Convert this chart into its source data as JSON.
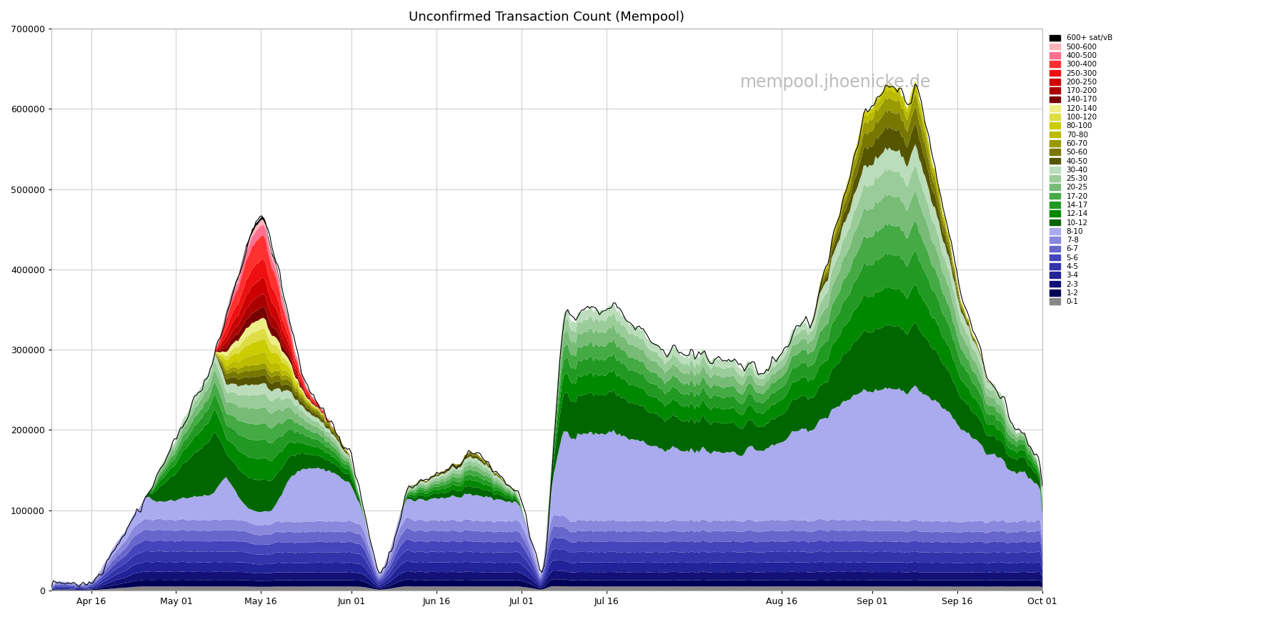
{
  "title": "Unconfirmed Transaction Count (Mempool)",
  "watermark": "mempool.jhoenicke.de",
  "background_color": "#ffffff",
  "plot_bg_color": "#ffffff",
  "grid_color": "#cccccc",
  "ylim": [
    0,
    700000
  ],
  "yticks": [
    0,
    100000,
    200000,
    300000,
    400000,
    500000,
    600000,
    700000
  ],
  "x_labels": [
    "Apr 16",
    "May 01",
    "May 16",
    "Jun 01",
    "Jun 16",
    "Jul 01",
    "Jul 16",
    "Aug 16",
    "Sep 01",
    "Sep 16",
    "Oct 01"
  ],
  "fee_bands": [
    {
      "label": "600+ sat/vB",
      "color": "#000000"
    },
    {
      "label": "500-600",
      "color": "#ffb3ba"
    },
    {
      "label": "400-500",
      "color": "#ff7090"
    },
    {
      "label": "300-400",
      "color": "#ff3030"
    },
    {
      "label": "250-300",
      "color": "#ee1010"
    },
    {
      "label": "200-250",
      "color": "#cc0000"
    },
    {
      "label": "170-200",
      "color": "#aa0000"
    },
    {
      "label": "140-170",
      "color": "#770000"
    },
    {
      "label": "120-140",
      "color": "#eeee88"
    },
    {
      "label": "100-120",
      "color": "#dddd44"
    },
    {
      "label": "80-100",
      "color": "#cccc00"
    },
    {
      "label": "70-80",
      "color": "#bbbb00"
    },
    {
      "label": "60-70",
      "color": "#999900"
    },
    {
      "label": "50-60",
      "color": "#777700"
    },
    {
      "label": "40-50",
      "color": "#555500"
    },
    {
      "label": "30-40",
      "color": "#bbddbb"
    },
    {
      "label": "25-30",
      "color": "#99cc99"
    },
    {
      "label": "20-25",
      "color": "#77bb77"
    },
    {
      "label": "17-20",
      "color": "#44aa44"
    },
    {
      "label": "14-17",
      "color": "#229922"
    },
    {
      "label": "12-14",
      "color": "#008800"
    },
    {
      "label": "10-12",
      "color": "#006600"
    },
    {
      "label": "8-10",
      "color": "#aaaaee"
    },
    {
      "label": "7-8",
      "color": "#8888dd"
    },
    {
      "label": "6-7",
      "color": "#6666cc"
    },
    {
      "label": "5-6",
      "color": "#4444bb"
    },
    {
      "label": "4-5",
      "color": "#3333aa"
    },
    {
      "label": "3-4",
      "color": "#222299"
    },
    {
      "label": "2-3",
      "color": "#111177"
    },
    {
      "label": "1-2",
      "color": "#000055"
    },
    {
      "label": "0-1",
      "color": "#888888"
    }
  ]
}
